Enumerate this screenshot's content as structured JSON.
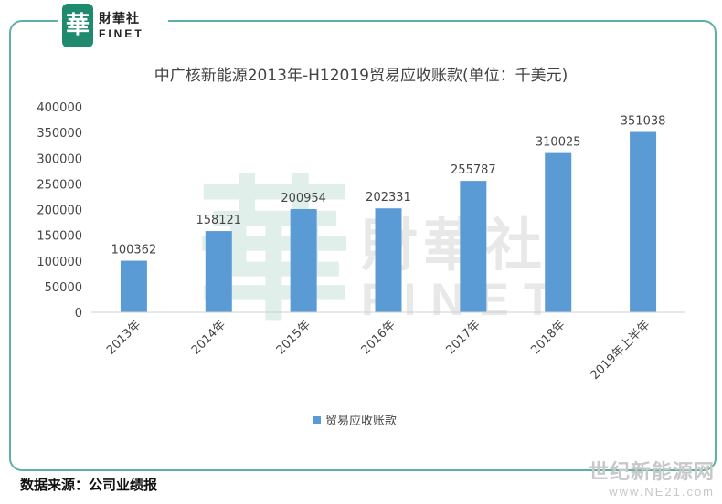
{
  "watermark": {
    "brand_cn": "財華社",
    "brand_en": "FINET",
    "seal_char": "華"
  },
  "footer": {
    "source": "数据来源：公司业绩报"
  },
  "corner_watermark": {
    "cn": "世纪新能源网",
    "url": "www.NE21.com"
  },
  "chart_data": {
    "type": "bar",
    "title": "中广核新能源2013年-H12019贸易应收账款(单位：千美元)",
    "categories": [
      "2013年",
      "2014年",
      "2015年",
      "2016年",
      "2017年",
      "2018年",
      "2019年上半年"
    ],
    "series": [
      {
        "name": "贸易应收账款",
        "values": [
          100362,
          158121,
          200954,
          202331,
          255787,
          310025,
          351038
        ],
        "color": "#5b9bd5"
      }
    ],
    "ylim": [
      0,
      400000
    ],
    "yticks": [
      0,
      50000,
      100000,
      150000,
      200000,
      250000,
      300000,
      350000,
      400000
    ],
    "grid": false,
    "legend": "bottom-center",
    "data_labels": true
  }
}
